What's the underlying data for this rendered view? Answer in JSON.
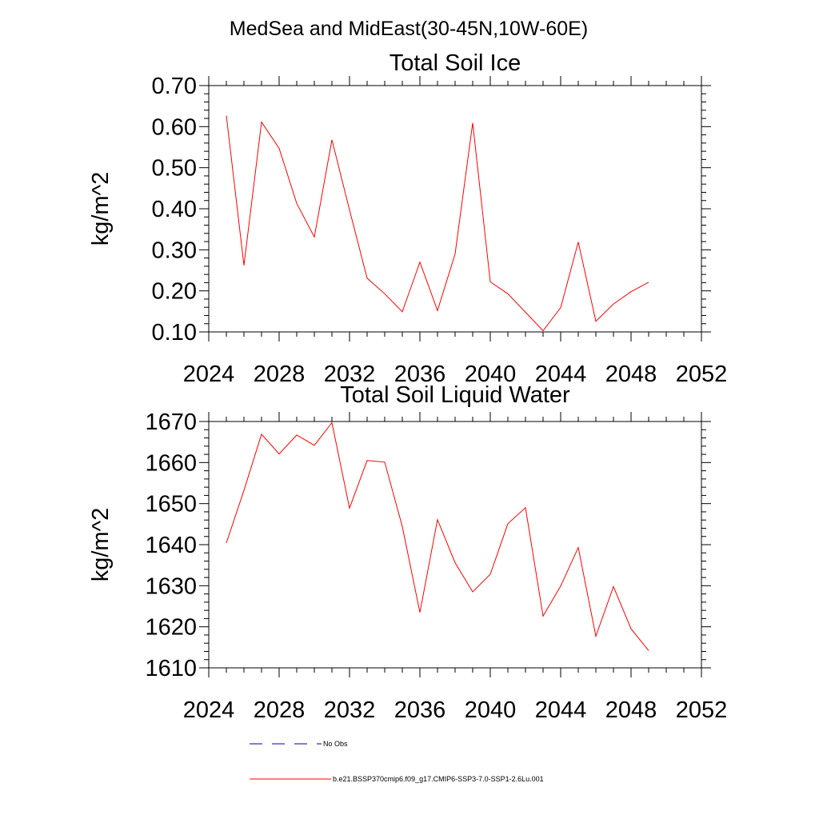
{
  "page_title": "MedSea and MidEast(30-45N,10W-60E)",
  "chart_data": [
    {
      "type": "line",
      "title": "Total Soil Ice",
      "xlabel": "",
      "ylabel": "kg/m^2",
      "xlim": [
        2024,
        2052
      ],
      "ylim": [
        0.1,
        0.7
      ],
      "x_ticks": [
        "2024",
        "2028",
        "2032",
        "2036",
        "2040",
        "2044",
        "2048",
        "2052"
      ],
      "y_ticks": [
        "0.10",
        "0.20",
        "0.30",
        "0.40",
        "0.50",
        "0.60",
        "0.70"
      ],
      "grid": false,
      "x": [
        2025,
        2026,
        2027,
        2028,
        2029,
        2030,
        2031,
        2032,
        2033,
        2034,
        2035,
        2036,
        2037,
        2038,
        2039,
        2040,
        2041,
        2042,
        2043,
        2044,
        2045,
        2046,
        2047,
        2048,
        2049
      ],
      "series": [
        {
          "color": "#ff0000",
          "values": [
            0.627,
            0.262,
            0.611,
            0.547,
            0.413,
            0.331,
            0.568,
            0.397,
            0.231,
            0.193,
            0.149,
            0.27,
            0.152,
            0.29,
            0.609,
            0.222,
            0.193,
            0.148,
            0.103,
            0.159,
            0.319,
            0.126,
            0.168,
            0.198,
            0.221
          ]
        }
      ]
    },
    {
      "type": "line",
      "title": "Total Soil Liquid Water",
      "xlabel": "",
      "ylabel": "kg/m^2",
      "xlim": [
        2024,
        2052
      ],
      "ylim": [
        1610,
        1670
      ],
      "x_ticks": [
        "2024",
        "2028",
        "2032",
        "2036",
        "2040",
        "2044",
        "2048",
        "2052"
      ],
      "y_ticks": [
        "1610",
        "1620",
        "1630",
        "1640",
        "1650",
        "1660",
        "1670"
      ],
      "grid": false,
      "x": [
        2025,
        2026,
        2027,
        2028,
        2029,
        2030,
        2031,
        2032,
        2033,
        2034,
        2035,
        2036,
        2037,
        2038,
        2039,
        2040,
        2041,
        2042,
        2043,
        2044,
        2045,
        2046,
        2047,
        2048,
        2049
      ],
      "series": [
        {
          "color": "#ff0000",
          "values": [
            1640.4,
            1653.2,
            1666.9,
            1662.1,
            1666.7,
            1664.2,
            1669.7,
            1648.9,
            1660.5,
            1660.1,
            1644.4,
            1623.5,
            1646.1,
            1635.6,
            1628.5,
            1632.8,
            1645.1,
            1649.0,
            1622.6,
            1629.9,
            1639.3,
            1617.7,
            1629.8,
            1619.5,
            1614.2
          ]
        }
      ]
    }
  ],
  "legend": {
    "items": [
      {
        "label": "No Obs",
        "color": "#0000a0",
        "style": "dashed"
      },
      {
        "label": "b.e21.BSSP370cmip6.f09_g17.CMIP6-SSP3-7.0-SSP1-2.6Lu.001",
        "color": "#ff0000",
        "style": "solid"
      }
    ]
  }
}
